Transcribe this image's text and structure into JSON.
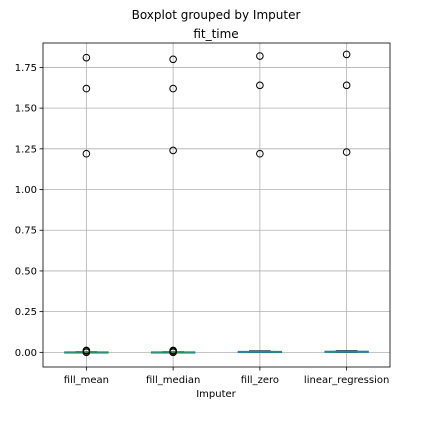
{
  "chart_data": {
    "type": "boxplot",
    "suptitle": "Boxplot grouped by Imputer",
    "title": "fit_time",
    "xlabel": "Imputer",
    "ylabel": "",
    "grid": true,
    "ylim": [
      -0.09,
      1.9
    ],
    "yticks": [
      0.0,
      0.25,
      0.5,
      0.75,
      1.0,
      1.25,
      1.5,
      1.75
    ],
    "ytick_labels": [
      "0.00",
      "0.25",
      "0.50",
      "0.75",
      "1.00",
      "1.25",
      "1.50",
      "1.75"
    ],
    "categories": [
      "fill_mean",
      "fill_median",
      "fill_zero",
      "linear_regression"
    ],
    "boxes": [
      {
        "name": "fill_mean",
        "whisker_low": 0.0,
        "q1": 0.001,
        "median": 0.002,
        "q3": 0.003,
        "whisker_high": 0.004,
        "outliers": [
          1.81,
          1.62,
          1.22,
          0.012,
          0.008,
          0.0
        ]
      },
      {
        "name": "fill_median",
        "whisker_low": 0.0,
        "q1": 0.001,
        "median": 0.002,
        "q3": 0.003,
        "whisker_high": 0.004,
        "outliers": [
          1.8,
          1.62,
          1.24,
          0.012,
          0.007,
          0.0
        ]
      },
      {
        "name": "fill_zero",
        "whisker_low": 0.0,
        "q1": 0.002,
        "median": 0.004,
        "q3": 0.006,
        "whisker_high": 0.009,
        "outliers": [
          1.82,
          1.64,
          1.22
        ]
      },
      {
        "name": "linear_regression",
        "whisker_low": 0.0,
        "q1": 0.002,
        "median": 0.004,
        "q3": 0.007,
        "whisker_high": 0.01,
        "outliers": [
          1.83,
          1.64,
          1.23
        ]
      }
    ],
    "colors": {
      "box": "#1f77b4",
      "median": "#2ca02c",
      "whisker": "#000000",
      "grid": "#b0b0b0"
    }
  }
}
